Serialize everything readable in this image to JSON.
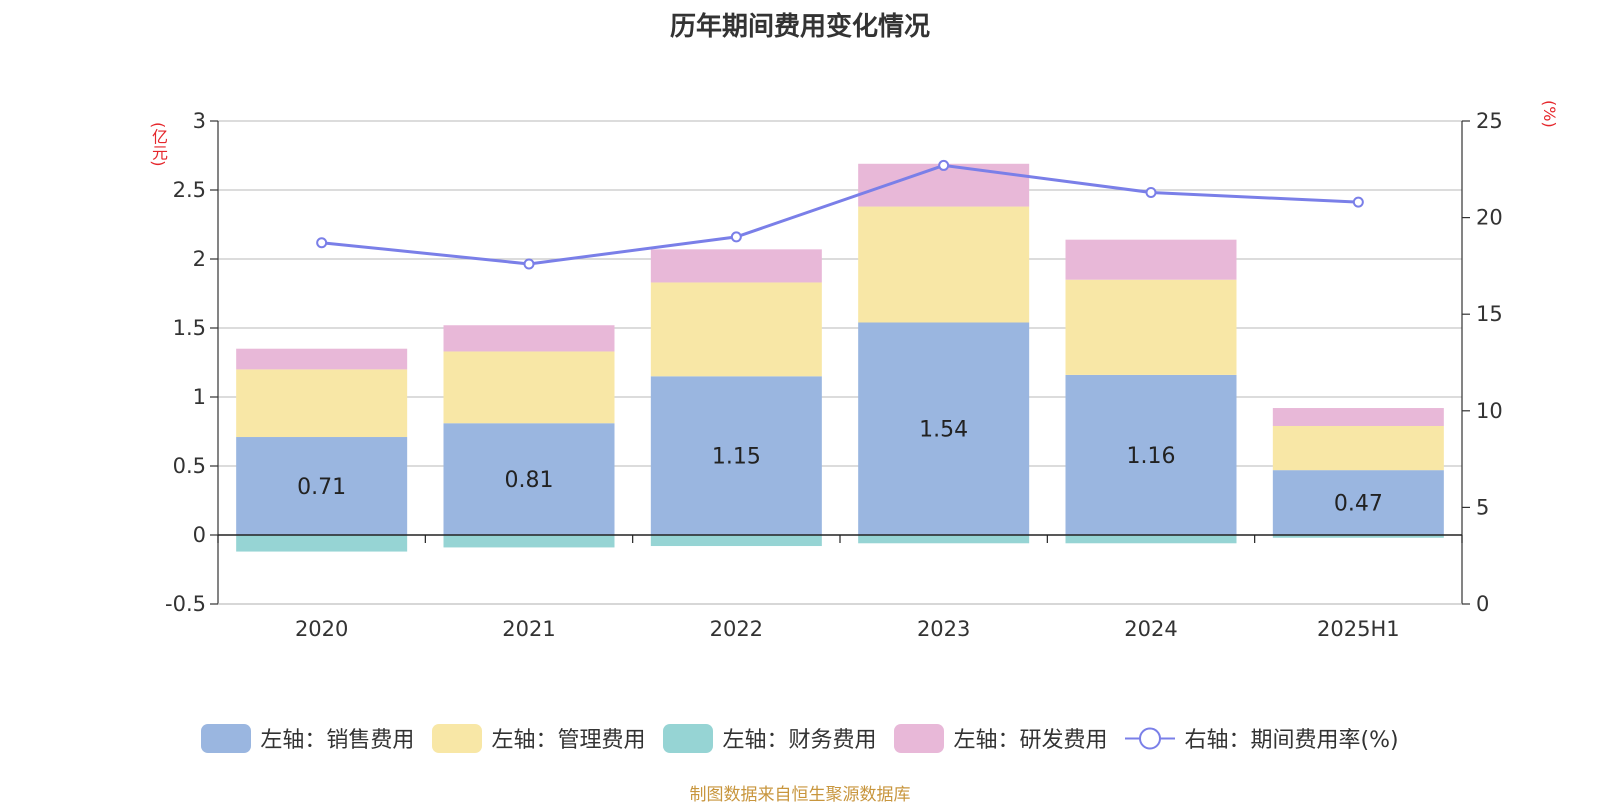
{
  "title": "历年期间费用变化情况",
  "left_unit": "(亿元)",
  "right_unit": "(%)",
  "source": "制图数据来自恒生聚源数据库",
  "chart_data": {
    "type": "bar",
    "stacked": true,
    "categories": [
      "2020",
      "2021",
      "2022",
      "2023",
      "2024",
      "2025H1"
    ],
    "series": [
      {
        "name": "左轴：销售费用",
        "axis": "left",
        "color": "#9ab6e0",
        "values": [
          0.71,
          0.81,
          1.15,
          1.54,
          1.16,
          0.47
        ],
        "labels": [
          "0.71",
          "0.81",
          "1.15",
          "1.54",
          "1.16",
          "0.47"
        ]
      },
      {
        "name": "左轴：管理费用",
        "axis": "left",
        "color": "#f8e7a6",
        "values": [
          0.49,
          0.52,
          0.68,
          0.84,
          0.69,
          0.32
        ]
      },
      {
        "name": "左轴：财务费用",
        "axis": "left",
        "color": "#96d4d4",
        "values": [
          -0.12,
          -0.09,
          -0.08,
          -0.06,
          -0.06,
          -0.02
        ]
      },
      {
        "name": "左轴：研发费用",
        "axis": "left",
        "color": "#e8b8d8",
        "values": [
          0.15,
          0.19,
          0.24,
          0.31,
          0.29,
          0.13
        ]
      },
      {
        "name": "右轴：期间费用率(%)",
        "axis": "right",
        "type": "line",
        "color": "#7a7fe8",
        "values": [
          18.7,
          17.6,
          19.0,
          22.7,
          21.3,
          20.8
        ]
      }
    ],
    "left_axis": {
      "min": -0.5,
      "max": 3,
      "ticks": [
        "3",
        "2.5",
        "2",
        "1.5",
        "1",
        "0.5",
        "0",
        "-0.5"
      ]
    },
    "right_axis": {
      "min": 0,
      "max": 25,
      "ticks": [
        "25",
        "20",
        "15",
        "10",
        "5",
        "0"
      ]
    },
    "grid": true,
    "legend": "bottom"
  }
}
